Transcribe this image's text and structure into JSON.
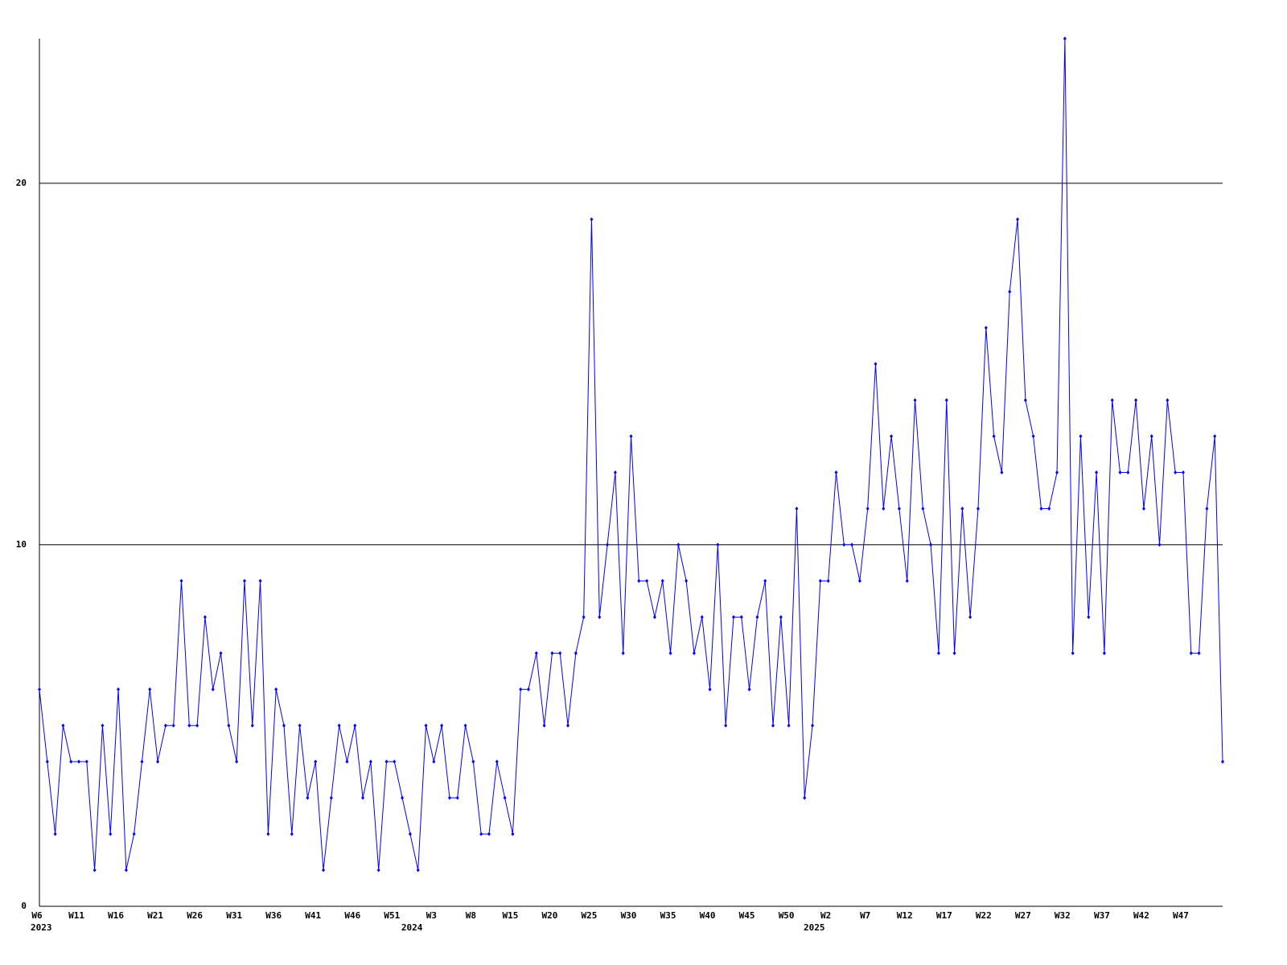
{
  "chart_data": {
    "type": "line",
    "categories": [
      "W6",
      null,
      null,
      null,
      null,
      "W11",
      null,
      null,
      null,
      null,
      "W16",
      null,
      null,
      null,
      null,
      "W21",
      null,
      null,
      null,
      null,
      "W26",
      null,
      null,
      null,
      null,
      "W31",
      null,
      null,
      null,
      null,
      "W36",
      null,
      null,
      null,
      null,
      "W41",
      null,
      null,
      null,
      null,
      "W46",
      null,
      null,
      null,
      null,
      "W51",
      null,
      null,
      null,
      null,
      "W3",
      null,
      null,
      null,
      null,
      "W8",
      null,
      null,
      null,
      null,
      "W15",
      null,
      null,
      null,
      null,
      "W20",
      null,
      null,
      null,
      null,
      "W25",
      null,
      null,
      null,
      null,
      "W30",
      null,
      null,
      null,
      null,
      "W35",
      null,
      null,
      null,
      null,
      "W40",
      null,
      null,
      null,
      null,
      "W45",
      null,
      null,
      null,
      null,
      "W50",
      null,
      null,
      null,
      null,
      "W2",
      null,
      null,
      null,
      null,
      "W7",
      null,
      null,
      null,
      null,
      "W12",
      null,
      null,
      null,
      null,
      "W17",
      null,
      null,
      null,
      null,
      "W22",
      null,
      null,
      null,
      null,
      "W27",
      null,
      null,
      null,
      null,
      "W32",
      null,
      null,
      null,
      null,
      "W37",
      null,
      null,
      null,
      null,
      "W42",
      null,
      null,
      null,
      null,
      "W47",
      null,
      null,
      null,
      null,
      null
    ],
    "year_labels": [
      {
        "label": "2023",
        "at": 0
      },
      {
        "label": "2024",
        "at": 47
      },
      {
        "label": "2025",
        "at": 98
      }
    ],
    "values": [
      6,
      4,
      2,
      5,
      4,
      4,
      4,
      1,
      5,
      2,
      6,
      1,
      2,
      4,
      6,
      4,
      5,
      5,
      9,
      5,
      5,
      8,
      6,
      7,
      5,
      4,
      9,
      5,
      9,
      2,
      6,
      5,
      2,
      5,
      3,
      4,
      1,
      3,
      5,
      4,
      5,
      3,
      4,
      1,
      4,
      4,
      3,
      2,
      1,
      5,
      4,
      5,
      3,
      3,
      5,
      4,
      2,
      2,
      4,
      3,
      2,
      6,
      6,
      7,
      5,
      7,
      7,
      5,
      7,
      8,
      19,
      8,
      10,
      12,
      7,
      13,
      9,
      9,
      8,
      9,
      7,
      10,
      9,
      7,
      8,
      6,
      10,
      5,
      8,
      8,
      6,
      8,
      9,
      5,
      8,
      5,
      11,
      3,
      5,
      9,
      9,
      12,
      10,
      10,
      9,
      11,
      15,
      11,
      13,
      11,
      9,
      14,
      11,
      10,
      7,
      14,
      7,
      11,
      8,
      11,
      16,
      13,
      12,
      17,
      19,
      14,
      13,
      11,
      11,
      12,
      24,
      7,
      13,
      8,
      12,
      7,
      14,
      12,
      12,
      14,
      11,
      13,
      10,
      14,
      12,
      12,
      7,
      7,
      11,
      13,
      4
    ],
    "color": "#0000ff",
    "grid": true,
    "ylim": [
      0,
      24
    ],
    "yticks": [
      0,
      10,
      20
    ]
  }
}
